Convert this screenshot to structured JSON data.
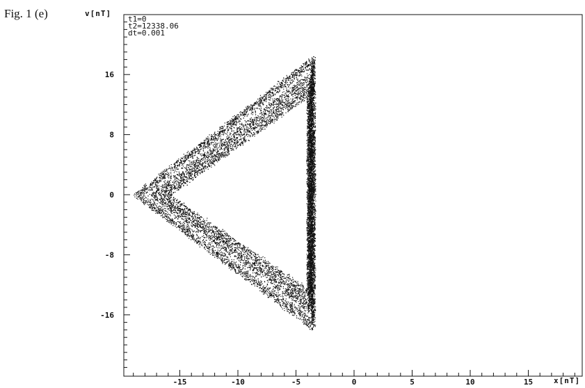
{
  "figure_label": "Fig. 1 (e)",
  "chart_data": {
    "type": "scatter",
    "title": "",
    "xlabel": "x[nT]",
    "ylabel": "v[nT]",
    "xlim": [
      -19.5,
      19.5
    ],
    "ylim": [
      -24.0,
      24.5
    ],
    "x_ticks": [
      -15,
      -10,
      -5,
      0,
      5,
      10,
      15
    ],
    "y_ticks": [
      16,
      8,
      0,
      -8,
      -16
    ],
    "grid": false,
    "legend": "none",
    "annotations": [
      "t1=0",
      "t2=12338.06",
      "dt=0.001"
    ],
    "point_color": "#111111",
    "series": [
      {
        "description": "",
        "orbit_vertices": [
          [
            -3.5,
            18.5
          ],
          [
            -3.5,
            -18.0
          ],
          [
            -19.0,
            0.0
          ]
        ],
        "inner_boundary_vertices": [
          [
            -4.0,
            12.5
          ],
          [
            -4.0,
            -12.0
          ],
          [
            -15.5,
            0.0
          ]
        ],
        "approx_points": 14000
      }
    ]
  }
}
